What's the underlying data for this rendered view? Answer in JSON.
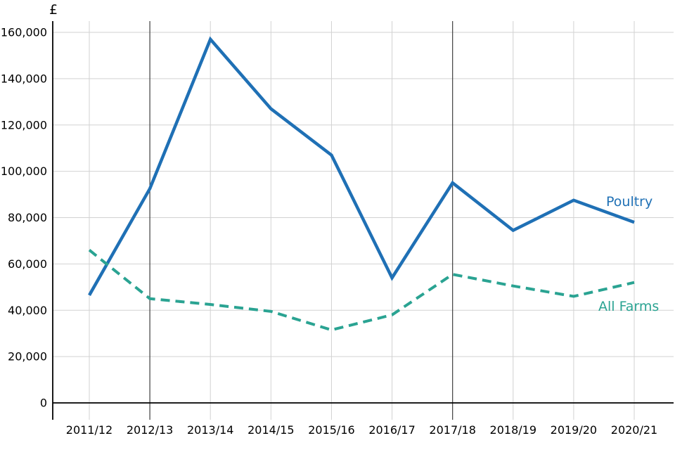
{
  "chart_data": {
    "type": "line",
    "title": "",
    "ylabel": "£",
    "xlabel": "",
    "categories": [
      "2011/12",
      "2012/13",
      "2013/14",
      "2014/15",
      "2015/16",
      "2016/17",
      "2017/18",
      "2018/19",
      "2019/20",
      "2020/21"
    ],
    "series": [
      {
        "name": "Poultry",
        "style": "solid",
        "color": "#1F70B5",
        "values": [
          46500,
          92500,
          157000,
          127000,
          107000,
          54000,
          95000,
          74500,
          87500,
          78000
        ]
      },
      {
        "name": "All Farms",
        "style": "dashed",
        "color": "#2AA392",
        "values": [
          66000,
          45000,
          42500,
          39500,
          31500,
          38000,
          55500,
          50500,
          46000,
          52000
        ]
      }
    ],
    "ylim": [
      0,
      160000
    ],
    "y_tick_step": 20000,
    "y_tick_labels": [
      "0",
      "20,000",
      "40,000",
      "60,000",
      "80,000",
      "100,000",
      "120,000",
      "140,000",
      "160,000"
    ],
    "grid": "on",
    "emphasis_gridline_categories": [
      "2012/13",
      "2017/18"
    ],
    "legend_position": "end-of-line labels"
  },
  "colors": {
    "gridline": "#D2D2D2",
    "emphasis_gridline": "#3F3F3F",
    "axis": "#000000",
    "tick_text": "#000000"
  }
}
